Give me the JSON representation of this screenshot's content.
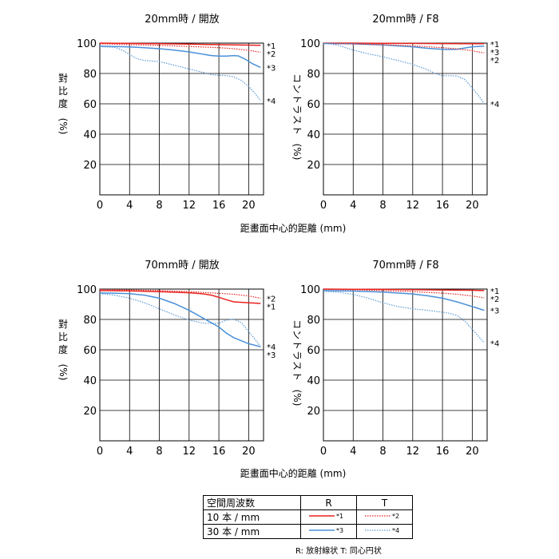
{
  "colors": {
    "red": "#e8231f",
    "blue": "#4a90d9",
    "blueDotted": "#5b9bd5"
  },
  "chart_data": [
    {
      "type": "line",
      "title": "20mm時 / 開放",
      "ylabel_chars": [
        "對",
        "比",
        "度"
      ],
      "ylabel_unit": "(%)",
      "xlabel": "",
      "xlim": [
        0,
        22
      ],
      "ylim": [
        0,
        100
      ],
      "xticks": [
        "0",
        "4",
        "8",
        "12",
        "16",
        "20"
      ],
      "yticks": [
        "20",
        "40",
        "60",
        "80",
        "100"
      ],
      "series": [
        {
          "name": "*1",
          "style": "solid",
          "color": "red",
          "x": [
            0,
            4,
            8,
            12,
            16,
            20,
            21.6
          ],
          "y": [
            100,
            99.8,
            99.6,
            99.3,
            99,
            98.7,
            98.5
          ]
        },
        {
          "name": "*2",
          "style": "dotted",
          "color": "red",
          "x": [
            0,
            4,
            8,
            12,
            16,
            18,
            20,
            21.6
          ],
          "y": [
            99.5,
            99,
            98.5,
            97.8,
            97,
            96.3,
            95.2,
            94
          ]
        },
        {
          "name": "*3",
          "style": "solid",
          "color": "blue",
          "x": [
            0,
            2,
            4,
            6,
            8,
            10,
            12,
            14,
            15,
            16,
            17,
            18,
            18.6,
            19.5,
            20.5,
            21.6
          ],
          "y": [
            98,
            97.8,
            97.5,
            97,
            96.3,
            95.4,
            94.2,
            92.6,
            91.8,
            91.4,
            91.5,
            91.8,
            91.6,
            89.5,
            86.5,
            84
          ]
        },
        {
          "name": "*4",
          "style": "dotted",
          "color": "blueDotted",
          "x": [
            0,
            2,
            3,
            4,
            5,
            6,
            8,
            10,
            12,
            14,
            15,
            16,
            17,
            18,
            19,
            20,
            21,
            21.6
          ],
          "y": [
            97.7,
            97.2,
            95.5,
            92.5,
            89.7,
            88.5,
            87.8,
            85.5,
            83,
            80.5,
            79.2,
            78.8,
            78.6,
            77.8,
            75.5,
            71.5,
            66,
            62
          ]
        }
      ]
    },
    {
      "type": "line",
      "title": "20mm時 / F8",
      "ylabel_chars": [
        "コ",
        "ン",
        "ト",
        "ラ",
        "ス",
        "ト"
      ],
      "ylabel_unit": "(%)",
      "xlabel": "",
      "xlim": [
        0,
        22
      ],
      "ylim": [
        0,
        100
      ],
      "xticks": [
        "0",
        "4",
        "8",
        "12",
        "16",
        "20"
      ],
      "yticks": [
        "20",
        "40",
        "60",
        "80",
        "100"
      ],
      "series": [
        {
          "name": "*1",
          "style": "solid",
          "color": "red",
          "x": [
            0,
            4,
            8,
            12,
            16,
            20,
            21.6
          ],
          "y": [
            100,
            100,
            99.9,
            99.8,
            99.7,
            99.6,
            99.6
          ]
        },
        {
          "name": "*3",
          "style": "solid",
          "color": "blue",
          "x": [
            0,
            4,
            8,
            12,
            14,
            16,
            17,
            18,
            19,
            20,
            21.6
          ],
          "y": [
            99.8,
            99.5,
            98.8,
            97.6,
            96.6,
            95.9,
            95.8,
            96,
            96.8,
            97.6,
            98
          ]
        },
        {
          "name": "*2",
          "style": "dotted",
          "color": "red",
          "x": [
            0,
            4,
            8,
            12,
            16,
            18,
            20,
            21.6
          ],
          "y": [
            99.8,
            99.5,
            99,
            98.2,
            97,
            96.2,
            95,
            93.5
          ]
        },
        {
          "name": "*4",
          "style": "dotted",
          "color": "blueDotted",
          "x": [
            0,
            1,
            2,
            3,
            4,
            6,
            8,
            10,
            12,
            14,
            15,
            16,
            17,
            18,
            19,
            20,
            21,
            21.6
          ],
          "y": [
            99.7,
            99.4,
            98.5,
            97,
            95.4,
            93,
            91,
            88.5,
            86,
            82.5,
            80,
            78.5,
            78.5,
            78.3,
            76,
            70.5,
            64.5,
            60
          ]
        }
      ]
    },
    {
      "type": "line",
      "title": "70mm時 / 開放",
      "ylabel_chars": [
        "對",
        "比",
        "度"
      ],
      "ylabel_unit": "(%)",
      "xlabel": "",
      "xlim": [
        0,
        22
      ],
      "ylim": [
        0,
        100
      ],
      "xticks": [
        "0",
        "4",
        "8",
        "12",
        "16",
        "20"
      ],
      "yticks": [
        "20",
        "40",
        "60",
        "80",
        "100"
      ],
      "series": [
        {
          "name": "*2",
          "style": "dotted",
          "color": "red",
          "x": [
            0,
            4,
            8,
            12,
            16,
            18,
            20,
            21.6
          ],
          "y": [
            99.7,
            99.4,
            99,
            98.3,
            97.2,
            96.6,
            95.5,
            94
          ]
        },
        {
          "name": "*1",
          "style": "solid",
          "color": "red",
          "x": [
            0,
            4,
            8,
            12,
            14,
            15,
            16,
            17,
            18,
            20,
            21.6
          ],
          "y": [
            99,
            98.8,
            98.3,
            97.6,
            96.8,
            96,
            94.6,
            93,
            91.6,
            91,
            90.5
          ]
        },
        {
          "name": "*4",
          "style": "dotted",
          "color": "blueDotted",
          "x": [
            0,
            2,
            4,
            6,
            8,
            10,
            12,
            14,
            16,
            17,
            18,
            19,
            20,
            21,
            21.6
          ],
          "y": [
            97,
            96,
            94,
            91,
            87,
            83,
            79.5,
            77.5,
            77.5,
            79.5,
            80.2,
            78,
            72,
            66,
            62
          ]
        },
        {
          "name": "*3",
          "style": "solid",
          "color": "blue",
          "x": [
            0,
            2,
            4,
            6,
            8,
            10,
            12,
            14,
            16,
            17,
            18,
            20,
            21.6
          ],
          "y": [
            97.5,
            97.3,
            97,
            96,
            94,
            90.5,
            86,
            80.5,
            75,
            71,
            68,
            64,
            62
          ]
        }
      ]
    },
    {
      "type": "line",
      "title": "70mm時 / F8",
      "ylabel_chars": [
        "コ",
        "ン",
        "ト",
        "ラ",
        "ス",
        "ト"
      ],
      "ylabel_unit": "(%)",
      "xlabel": "",
      "xlim": [
        0,
        22
      ],
      "ylim": [
        0,
        100
      ],
      "xticks": [
        "0",
        "4",
        "8",
        "12",
        "16",
        "20"
      ],
      "yticks": [
        "20",
        "40",
        "60",
        "80",
        "100"
      ],
      "series": [
        {
          "name": "*1",
          "style": "solid",
          "color": "red",
          "x": [
            0,
            4,
            8,
            12,
            16,
            20,
            21.6
          ],
          "y": [
            100,
            99.9,
            99.8,
            99.6,
            99.4,
            99.2,
            99
          ]
        },
        {
          "name": "*2",
          "style": "dotted",
          "color": "red",
          "x": [
            0,
            4,
            8,
            12,
            16,
            18,
            20,
            21.6
          ],
          "y": [
            99.8,
            99.5,
            99,
            98.3,
            97.3,
            96.6,
            95.5,
            94.2
          ]
        },
        {
          "name": "*3",
          "style": "solid",
          "color": "blue",
          "x": [
            0,
            4,
            8,
            12,
            14,
            16,
            18,
            20,
            21.6
          ],
          "y": [
            99,
            98.7,
            98,
            96.8,
            95.6,
            94,
            91.5,
            88.5,
            86
          ]
        },
        {
          "name": "*4",
          "style": "dotted",
          "color": "blueDotted",
          "x": [
            0,
            2,
            4,
            6,
            8,
            10,
            12,
            14,
            16,
            17,
            18,
            19,
            20,
            21,
            21.6
          ],
          "y": [
            98.5,
            98,
            96.5,
            94,
            91,
            88.5,
            87,
            86,
            84.8,
            84,
            82.5,
            79,
            73.5,
            68,
            64.5
          ]
        }
      ]
    }
  ],
  "xlabel_main": "距畫面中心的距離 (mm)",
  "legend": {
    "header": [
      "空間周波数",
      "R",
      "T"
    ],
    "rows": [
      {
        "label": "10 本 / mm",
        "r": "*1",
        "t": "*2",
        "color": "red"
      },
      {
        "label": "30 本 / mm",
        "r": "*3",
        "t": "*4",
        "color": "blue"
      }
    ],
    "footnote": "R: 放射線状  T: 同心円状"
  }
}
